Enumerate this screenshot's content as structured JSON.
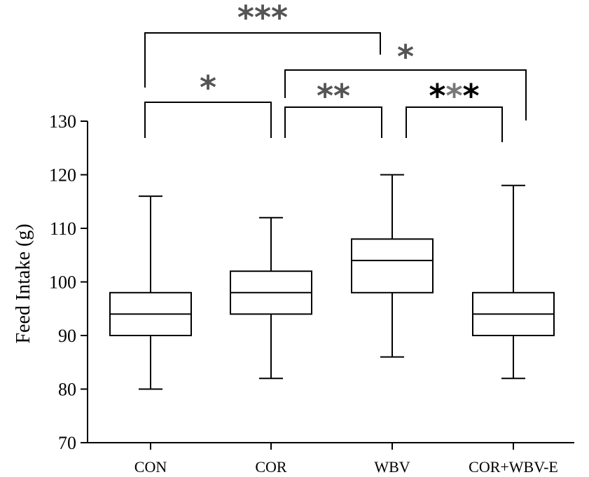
{
  "chart_data": {
    "type": "boxplot",
    "ylabel": "Feed Intake (g)",
    "ylim": [
      70,
      130
    ],
    "yticks": [
      70,
      80,
      90,
      100,
      110,
      120,
      130
    ],
    "categories": [
      "CON",
      "COR",
      "WBV",
      "COR+WBV-E"
    ],
    "boxes": [
      {
        "min": 80,
        "q1": 90,
        "median": 94,
        "q3": 98,
        "max": 116
      },
      {
        "min": 82,
        "q1": 94,
        "median": 98,
        "q3": 102,
        "max": 112
      },
      {
        "min": 86,
        "q1": 98,
        "median": 104,
        "q3": 108,
        "max": 120
      },
      {
        "min": 82,
        "q1": 90,
        "median": 94,
        "q3": 98,
        "max": 118
      }
    ],
    "significance": [
      {
        "from": 0,
        "to": 2,
        "label": "***",
        "colors": [
          "#555555",
          "#555555",
          "#555555"
        ]
      },
      {
        "from": 1,
        "to": 3,
        "label": "*",
        "colors": [
          "#555555"
        ]
      },
      {
        "from": 0,
        "to": 1,
        "label": "*",
        "colors": [
          "#555555"
        ]
      },
      {
        "from": 1,
        "to": 2,
        "label": "**",
        "colors": [
          "#555555",
          "#555555"
        ]
      },
      {
        "from": 2,
        "to": 3,
        "label": "***",
        "colors": [
          "#000000",
          "#777777",
          "#000000"
        ]
      }
    ]
  }
}
